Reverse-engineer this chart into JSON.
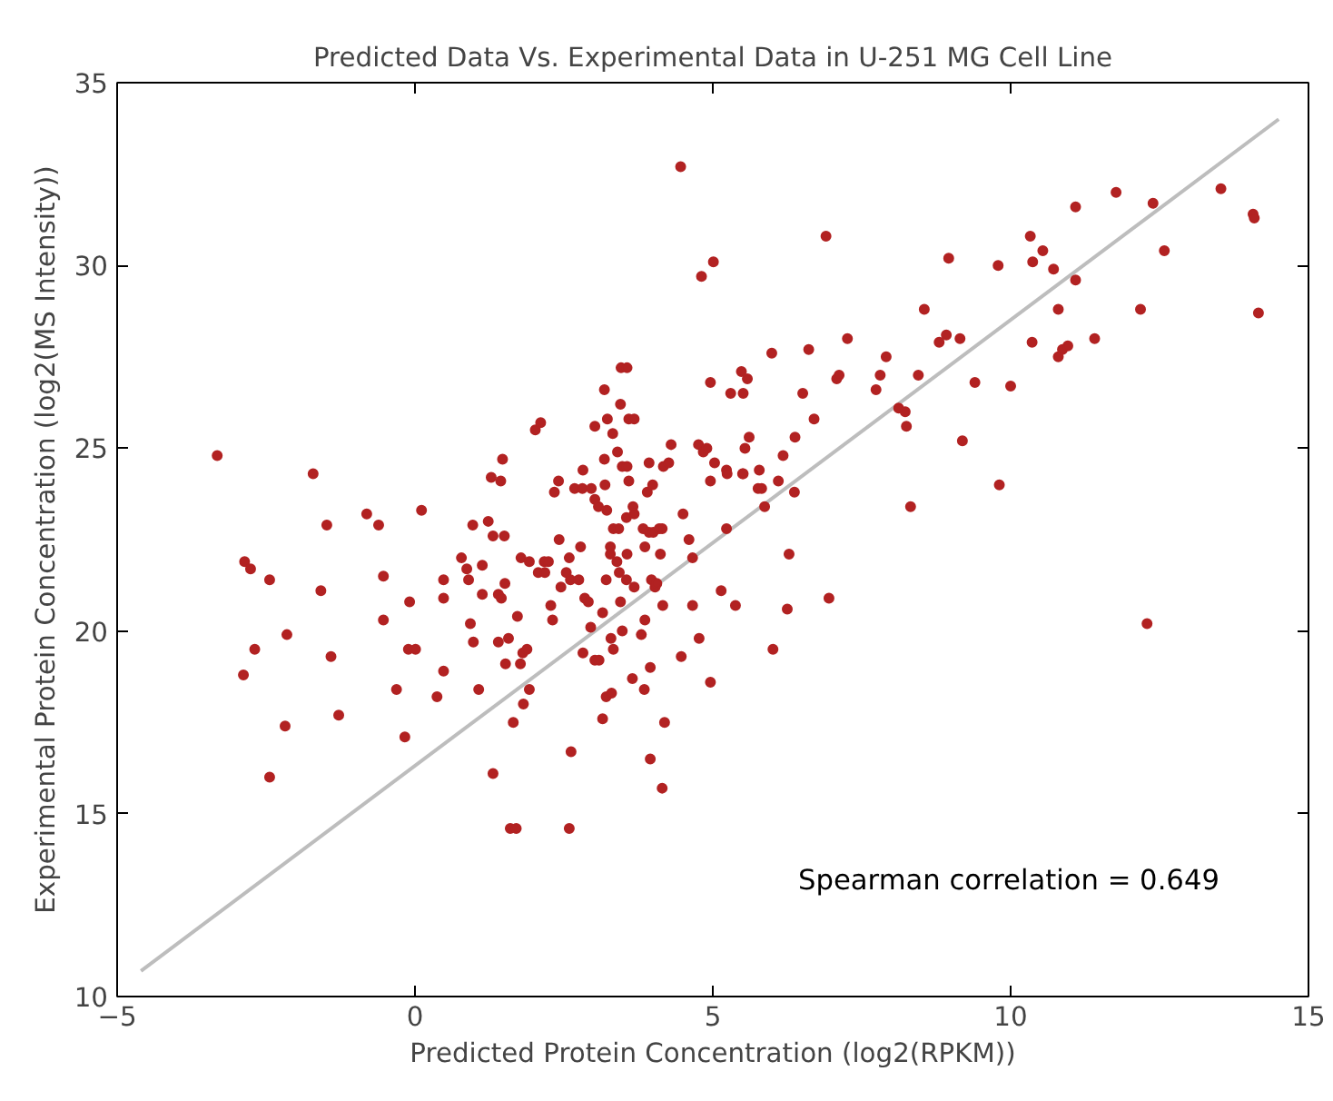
{
  "chart_data": {
    "type": "scatter",
    "title": "Predicted Data Vs. Experimental Data in U-251 MG Cell Line",
    "xlabel": "Predicted Protein Concentration (log2(RPKM))",
    "ylabel": "Experimental Protein Concentration (log2(MS Intensity))",
    "xlim": [
      -5,
      15
    ],
    "ylim": [
      10,
      35
    ],
    "xticks": [
      {
        "value": -5,
        "label": "−5"
      },
      0,
      5,
      10,
      15
    ],
    "yticks": [
      10,
      15,
      20,
      25,
      30,
      35
    ],
    "grid": false,
    "annotations": [
      "Spearman correlation = 0.649"
    ],
    "series": [
      {
        "color": "#b22222",
        "marker": "circle",
        "x": [
          -3.32,
          -2.86,
          -2.76,
          -2.88,
          -2.69,
          -2.44,
          -2.44,
          -2.15,
          -2.18,
          -1.71,
          -1.58,
          -1.48,
          -1.41,
          -1.28,
          -0.81,
          -0.61,
          -0.53,
          -0.53,
          -0.31,
          -0.17,
          -0.09,
          -0.11,
          0.01,
          0.11,
          0.48,
          0.48,
          0.48,
          0.37,
          0.78,
          0.87,
          0.97,
          0.9,
          0.93,
          0.98,
          1.07,
          1.13,
          1.13,
          1.23,
          1.28,
          1.31,
          1.31,
          1.44,
          1.47,
          1.4,
          1.45,
          1.5,
          1.51,
          1.4,
          1.57,
          1.52,
          1.6,
          1.7,
          1.65,
          1.72,
          1.77,
          1.81,
          1.88,
          1.92,
          1.82,
          1.78,
          1.92,
          2.02,
          2.11,
          2.07,
          2.17,
          2.18,
          2.24,
          2.28,
          2.31,
          2.34,
          2.41,
          2.42,
          2.45,
          2.54,
          2.59,
          2.61,
          2.62,
          2.59,
          2.68,
          2.75,
          2.78,
          2.82,
          2.81,
          2.82,
          2.85,
          2.91,
          2.95,
          2.96,
          3.02,
          3.02,
          3.02,
          3.09,
          3.08,
          3.15,
          3.15,
          3.18,
          3.18,
          3.19,
          3.21,
          3.21,
          3.23,
          3.22,
          3.28,
          3.28,
          3.3,
          3.29,
          3.32,
          3.33,
          3.33,
          3.39,
          3.4,
          3.43,
          3.45,
          3.42,
          3.45,
          3.48,
          3.46,
          3.56,
          3.48,
          3.55,
          3.56,
          3.56,
          3.55,
          3.59,
          3.68,
          3.65,
          3.66,
          3.68,
          3.59,
          3.68,
          3.8,
          3.83,
          3.85,
          3.86,
          3.86,
          3.9,
          3.93,
          3.93,
          3.95,
          3.95,
          3.97,
          3.99,
          4.0,
          4.03,
          4.06,
          4.12,
          4.1,
          4.15,
          4.16,
          4.17,
          4.15,
          4.19,
          4.26,
          4.3,
          4.46,
          4.47,
          4.5,
          4.6,
          4.66,
          4.66,
          4.76,
          4.77,
          4.81,
          4.84,
          4.9,
          4.96,
          4.96,
          4.96,
          5.01,
          5.03,
          5.14,
          5.23,
          5.23,
          5.24,
          5.3,
          5.38,
          5.48,
          5.5,
          5.51,
          5.51,
          5.54,
          5.58,
          5.61,
          5.76,
          5.78,
          5.82,
          5.87,
          5.99,
          6.01,
          6.1,
          6.18,
          6.28,
          6.25,
          6.37,
          6.38,
          6.51,
          6.61,
          6.7,
          6.9,
          6.95,
          7.08,
          7.12,
          7.26,
          7.74,
          7.81,
          7.91,
          8.12,
          8.23,
          8.25,
          8.32,
          8.45,
          8.55,
          8.8,
          8.92,
          8.96,
          9.15,
          9.19,
          9.4,
          9.79,
          9.81,
          10.0,
          10.33,
          10.37,
          10.36,
          10.54,
          10.72,
          10.8,
          10.8,
          10.87,
          10.96,
          11.09,
          11.09,
          11.41,
          11.77,
          12.18,
          12.29,
          12.39,
          12.58,
          13.53,
          14.07,
          14.09,
          14.16
        ],
        "values": [
          24.8,
          21.9,
          21.7,
          18.8,
          19.5,
          21.4,
          16.0,
          19.9,
          17.4,
          24.3,
          21.1,
          22.9,
          19.3,
          17.7,
          23.2,
          22.9,
          21.5,
          20.3,
          18.4,
          17.1,
          20.8,
          19.5,
          19.5,
          23.3,
          21.4,
          20.9,
          18.9,
          18.2,
          22.0,
          21.7,
          22.9,
          21.4,
          20.2,
          19.7,
          18.4,
          21.8,
          21.0,
          23.0,
          24.2,
          22.6,
          16.1,
          24.1,
          24.7,
          21.0,
          20.9,
          22.6,
          21.3,
          19.7,
          19.8,
          19.1,
          14.6,
          14.6,
          17.5,
          20.4,
          19.1,
          19.4,
          19.5,
          18.4,
          18.0,
          22.0,
          21.9,
          25.5,
          25.7,
          21.6,
          21.9,
          21.6,
          21.9,
          20.7,
          20.3,
          23.8,
          24.1,
          22.5,
          21.2,
          21.6,
          22.0,
          21.4,
          16.7,
          14.6,
          23.9,
          21.4,
          22.3,
          24.4,
          23.9,
          19.4,
          20.9,
          20.8,
          20.1,
          23.9,
          25.6,
          23.6,
          19.2,
          19.2,
          23.4,
          20.5,
          17.6,
          26.6,
          24.7,
          24.0,
          21.4,
          18.2,
          25.8,
          23.3,
          22.3,
          22.1,
          18.3,
          19.8,
          25.4,
          22.8,
          19.5,
          21.9,
          24.9,
          21.6,
          26.2,
          22.8,
          20.8,
          20.0,
          27.2,
          27.2,
          24.5,
          23.1,
          24.5,
          22.1,
          21.4,
          25.8,
          25.8,
          18.7,
          23.4,
          23.2,
          24.1,
          21.2,
          19.9,
          22.8,
          18.4,
          20.3,
          22.3,
          23.8,
          22.7,
          24.6,
          16.5,
          19.0,
          21.4,
          24.0,
          22.7,
          21.2,
          21.3,
          22.1,
          22.8,
          22.8,
          20.7,
          24.5,
          15.7,
          17.5,
          24.6,
          25.1,
          32.7,
          19.3,
          23.2,
          22.5,
          22.0,
          20.7,
          25.1,
          19.8,
          29.7,
          24.9,
          25.0,
          24.1,
          18.6,
          26.8,
          30.1,
          24.6,
          21.1,
          22.8,
          24.4,
          24.3,
          26.5,
          20.7,
          27.1,
          24.3,
          26.5,
          24.3,
          25.0,
          26.9,
          25.3,
          23.9,
          24.4,
          23.9,
          23.4,
          27.6,
          19.5,
          24.1,
          24.8,
          22.1,
          20.6,
          23.8,
          25.3,
          26.5,
          27.7,
          25.8,
          30.8,
          20.9,
          26.9,
          27.0,
          28.0,
          26.6,
          27.0,
          27.5,
          26.1,
          26.0,
          25.6,
          23.4,
          27.0,
          28.8,
          27.9,
          28.1,
          30.2,
          28.0,
          25.2,
          26.8,
          30.0,
          24.0,
          26.7,
          30.8,
          30.1,
          27.9,
          30.4,
          29.9,
          28.8,
          27.5,
          27.7,
          27.8,
          29.6,
          31.6,
          28.0,
          32.0,
          28.8,
          20.2,
          31.7,
          30.4,
          32.1,
          31.4,
          31.3,
          28.7
        ]
      },
      {
        "type": "line",
        "color": "#bdbdbd",
        "x": [
          -4.6,
          14.5
        ],
        "values": [
          10.7,
          34.0
        ]
      }
    ]
  }
}
